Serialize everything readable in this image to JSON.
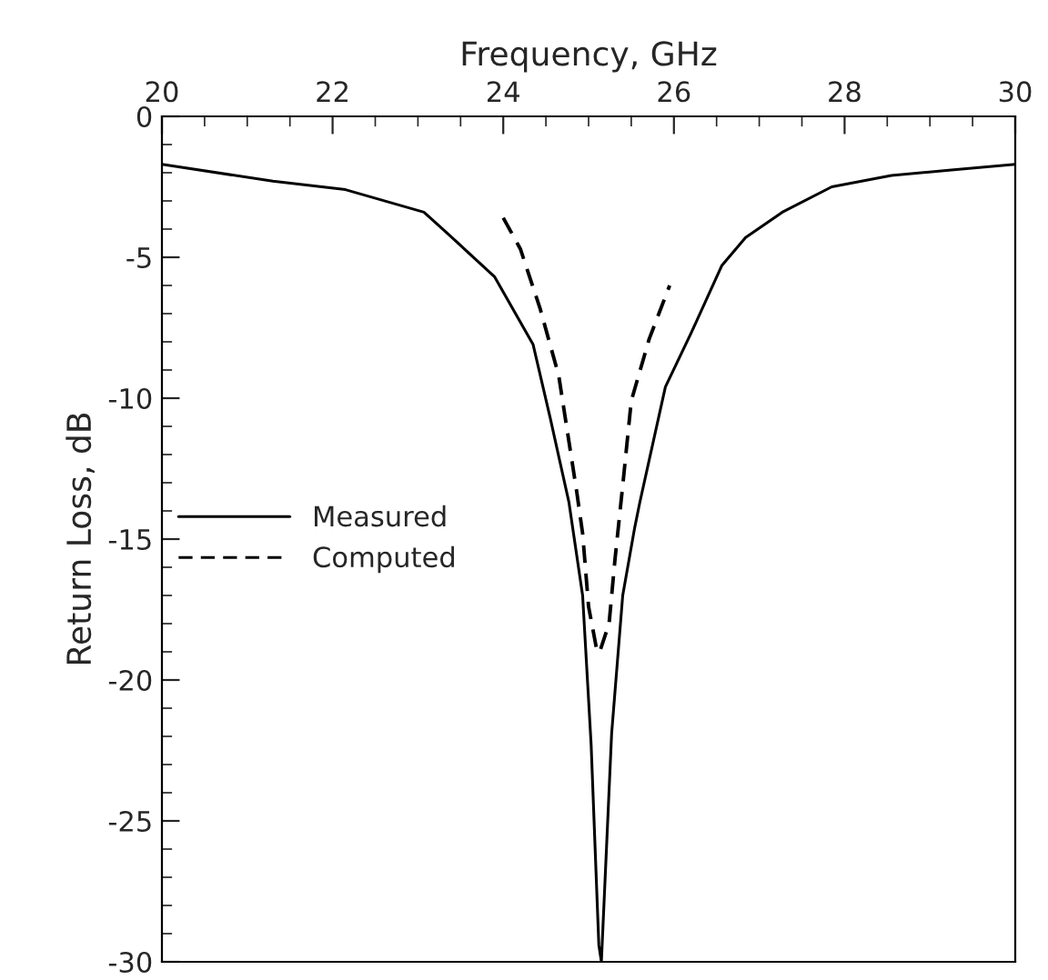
{
  "chart_data": {
    "type": "line",
    "xlabel": "Frequency, GHz",
    "ylabel": "Return Loss, dB",
    "xlim": [
      20,
      30
    ],
    "xticks": [
      20,
      22,
      24,
      26,
      28,
      30
    ],
    "ylim": [
      -30,
      0
    ],
    "yticks": [
      {
        "value": 0,
        "label": "0"
      },
      -5,
      -10,
      -15,
      -20,
      -25,
      -30
    ],
    "grid": false,
    "legend": "left",
    "marker": "none",
    "series": [
      {
        "name": "Measured",
        "color": "#000000",
        "line_style": "solid",
        "x": [
          20.0,
          21.3,
          22.15,
          23.07,
          23.4,
          23.9,
          24.35,
          24.55,
          24.77,
          24.93,
          25.03,
          25.12,
          25.15,
          25.27,
          25.4,
          25.54,
          25.6,
          25.9,
          26.2,
          26.56,
          26.84,
          27.27,
          27.85,
          28.55,
          29.25,
          30.0
        ],
        "values": [
          -1.7,
          -2.3,
          -2.6,
          -3.4,
          -4.3,
          -5.7,
          -8.1,
          -10.7,
          -13.7,
          -17.0,
          -22.3,
          -29.4,
          -30.0,
          -21.9,
          -17.0,
          -14.6,
          -13.7,
          -9.6,
          -7.7,
          -5.3,
          -4.3,
          -3.4,
          -2.5,
          -2.1,
          -1.9,
          -1.7
        ]
      },
      {
        "name": "Computed",
        "color": "#000000",
        "line_style": "dashed",
        "x": [
          24.0,
          24.2,
          24.43,
          24.65,
          24.86,
          24.93,
          25.0,
          25.1,
          25.13,
          25.24,
          25.31,
          25.4,
          25.5,
          25.71,
          25.95
        ],
        "values": [
          -3.6,
          -4.7,
          -6.8,
          -9.2,
          -13.3,
          -14.8,
          -17.4,
          -19.0,
          -19.0,
          -18.0,
          -15.7,
          -13.1,
          -10.1,
          -7.9,
          -6.0
        ]
      }
    ]
  }
}
